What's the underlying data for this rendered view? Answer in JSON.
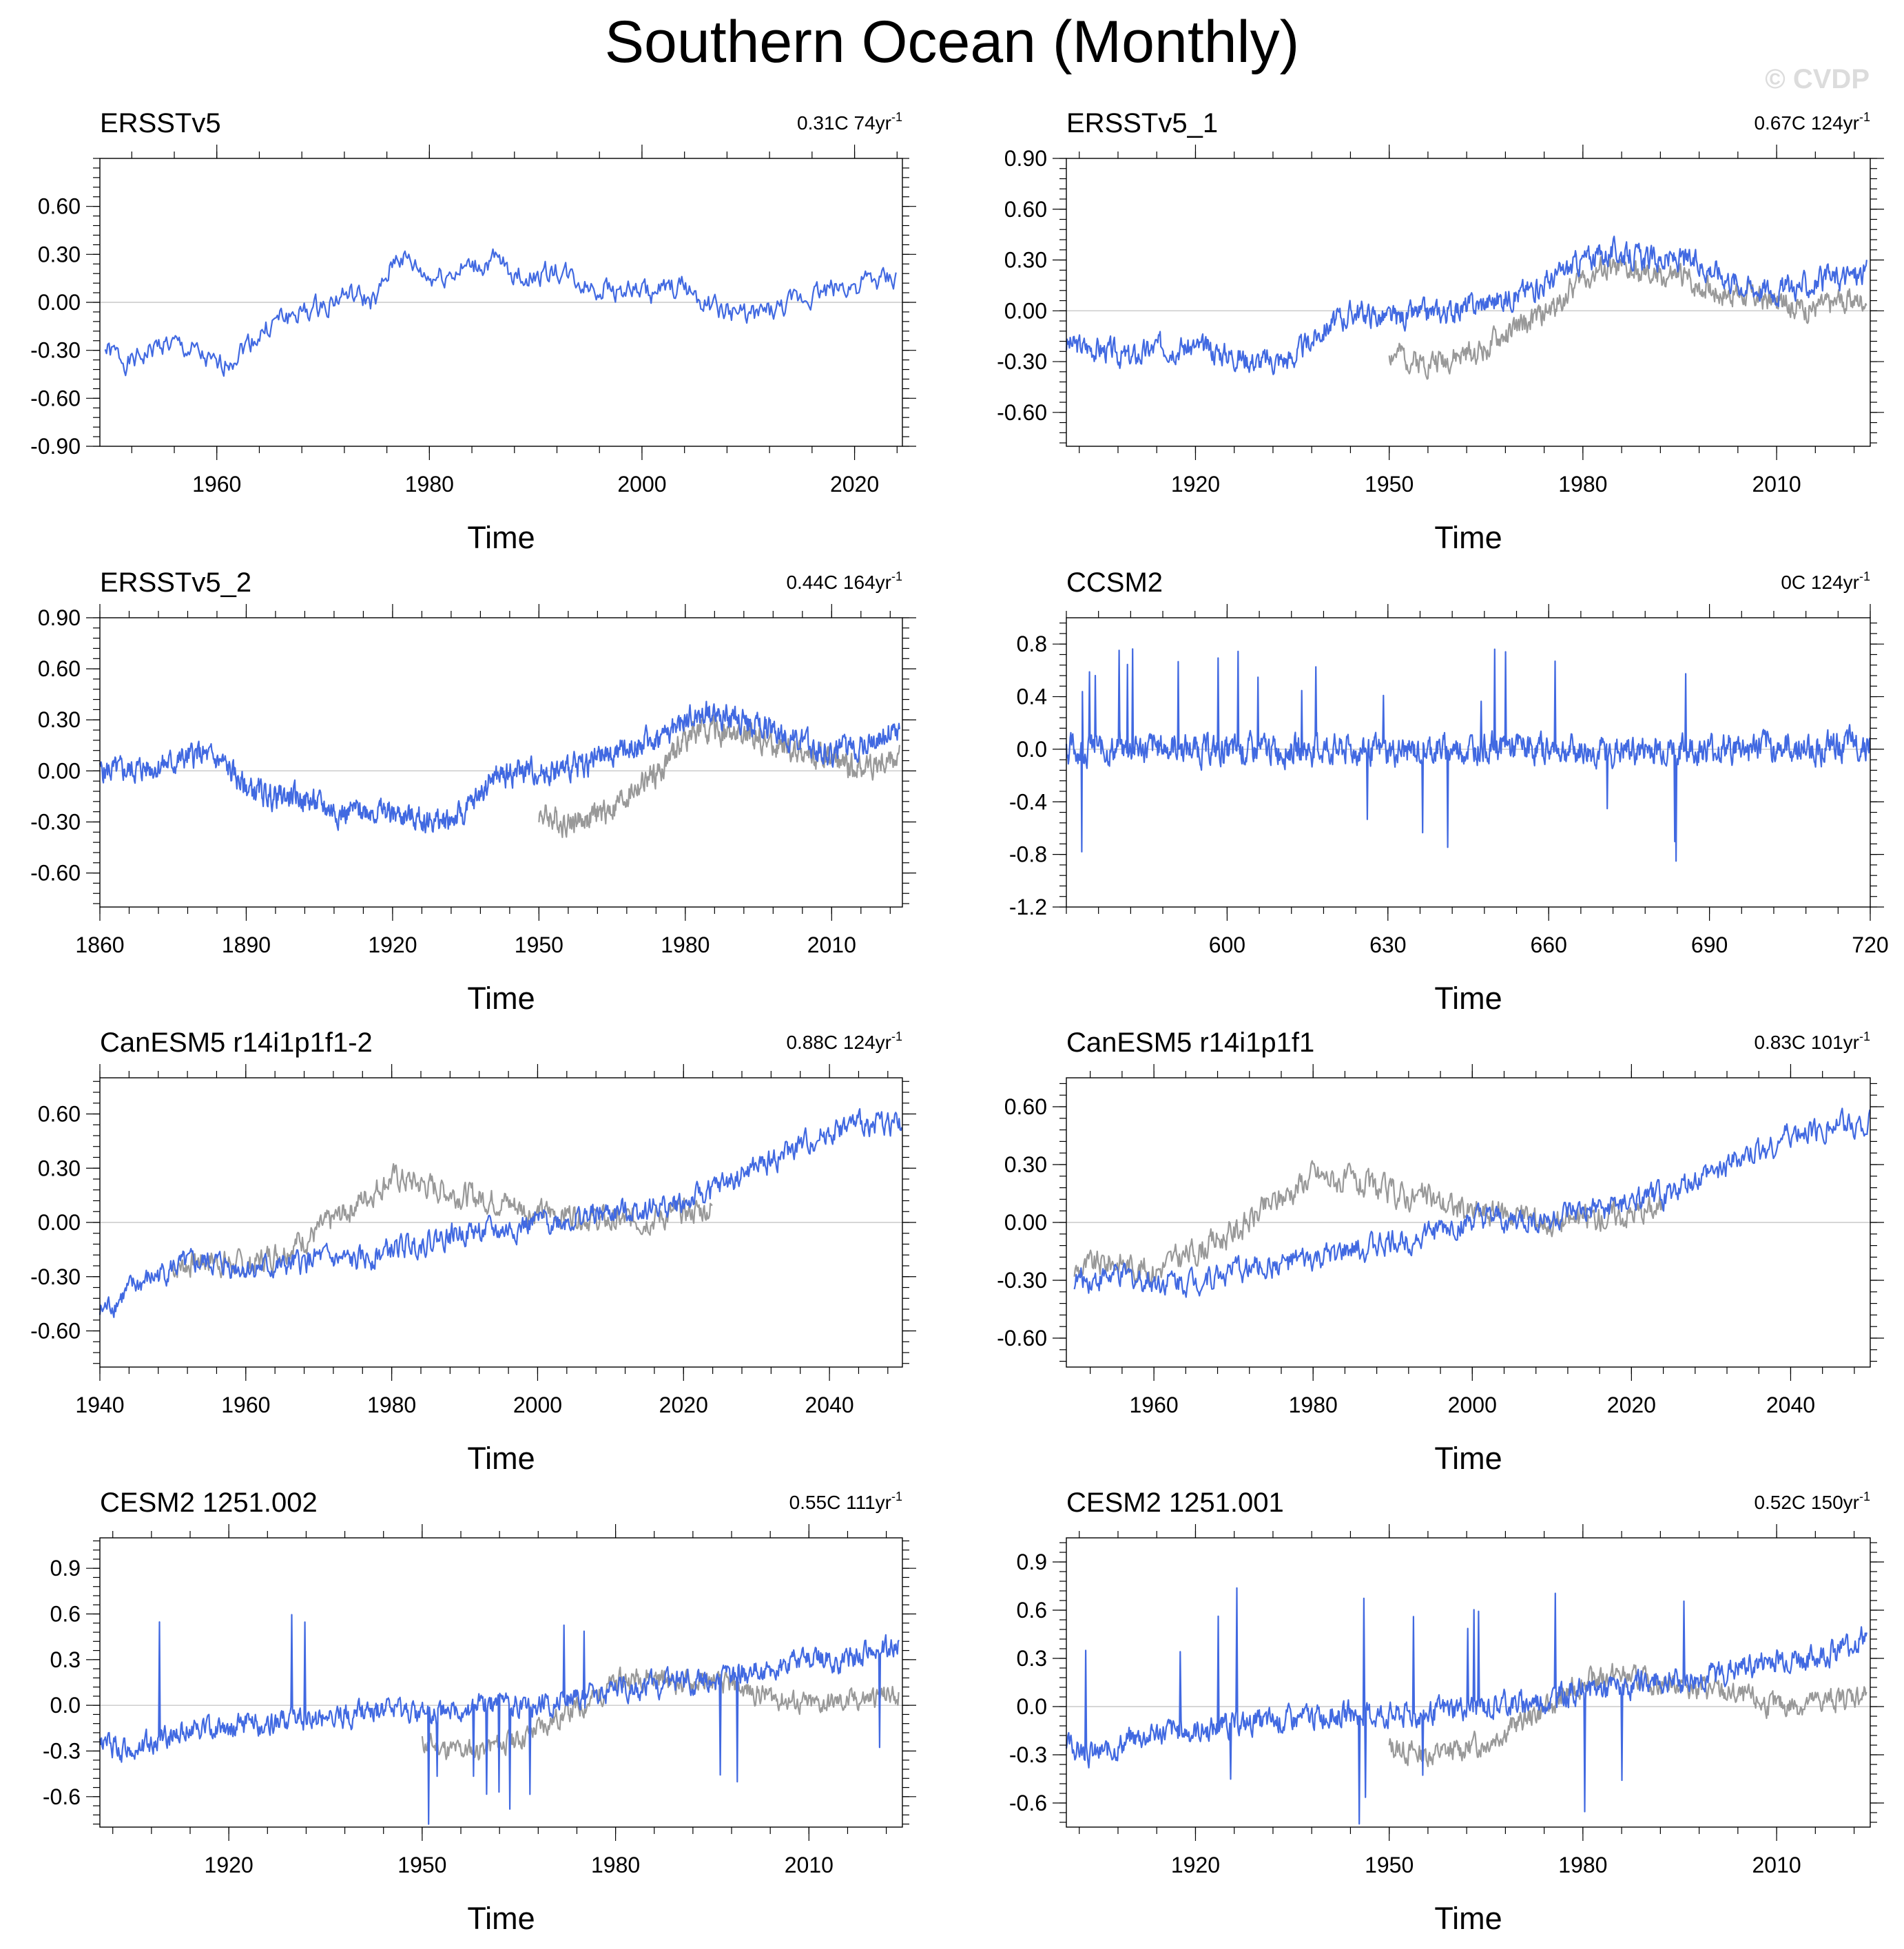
{
  "title": "Southern Ocean (Monthly)",
  "watermark": "© CVDP",
  "colors": {
    "primary": "#4169e1",
    "comparison": "#999999",
    "zero_line": "#c8c8c8"
  },
  "chart_data": [
    {
      "type": "line",
      "title": "ERSSTv5",
      "trend_text": "0.31C 74yr",
      "trend_sup": "-1",
      "xlabel": "Time",
      "xlim": [
        1949,
        2024.5
      ],
      "ylim": [
        -0.9,
        0.9
      ],
      "yticks": [
        -0.9,
        -0.6,
        -0.3,
        0.0,
        0.3,
        0.6
      ],
      "ytick_labels": [
        "-0.90",
        "-0.60",
        "-0.30",
        "0.00",
        "0.30",
        "0.60"
      ],
      "xticks": [
        1960,
        1980,
        2000,
        2020
      ],
      "xtick_labels": [
        "1960",
        "1980",
        "2000",
        "2020"
      ],
      "series": [
        {
          "name": "ERSSTv5",
          "color": "#4169e1",
          "x": [
            1949.5,
            1952,
            1955,
            1958,
            1960,
            1963,
            1966,
            1969,
            1972,
            1975,
            1977,
            1980,
            1983,
            1986,
            1989,
            1992,
            1995,
            1998,
            2001,
            2004,
            2007,
            2010,
            2013,
            2016,
            2019,
            2022,
            2024
          ],
          "y": [
            -0.3,
            -0.38,
            -0.25,
            -0.32,
            -0.42,
            -0.25,
            -0.1,
            -0.05,
            0.05,
            0.0,
            0.3,
            0.15,
            0.2,
            0.25,
            0.15,
            0.2,
            0.1,
            0.08,
            0.05,
            0.1,
            -0.05,
            -0.08,
            -0.05,
            0.05,
            0.1,
            0.12,
            0.15
          ],
          "amp": 0.13,
          "seed": 1
        }
      ]
    },
    {
      "type": "line",
      "title": "ERSSTv5_1",
      "trend_text": "0.67C 124yr",
      "trend_sup": "-1",
      "xlabel": "Time",
      "xlim": [
        1900,
        2024.5
      ],
      "ylim": [
        -0.8,
        0.9
      ],
      "yticks": [
        -0.6,
        -0.3,
        0.0,
        0.3,
        0.6,
        0.9
      ],
      "ytick_labels": [
        "-0.60",
        "-0.30",
        "0.00",
        "0.30",
        "0.60",
        "0.90"
      ],
      "xticks": [
        1920,
        1950,
        1980,
        2010
      ],
      "xtick_labels": [
        "1920",
        "1950",
        "1980",
        "2010"
      ],
      "series": [
        {
          "name": "comparison",
          "color": "#999999",
          "x": [
            1950,
            1955,
            1960,
            1965,
            1970,
            1975,
            1980,
            1985,
            1990,
            1995,
            2000,
            2005,
            2010,
            2015,
            2020,
            2024
          ],
          "y": [
            -0.25,
            -0.3,
            -0.28,
            -0.22,
            -0.1,
            0.0,
            0.2,
            0.25,
            0.2,
            0.2,
            0.12,
            0.1,
            0.05,
            0.02,
            0.05,
            0.08
          ],
          "amp": 0.13,
          "seed": 2
        },
        {
          "name": "ERSSTv5_1",
          "color": "#4169e1",
          "x": [
            1900,
            1905,
            1910,
            1915,
            1920,
            1925,
            1930,
            1935,
            1940,
            1945,
            1950,
            1955,
            1960,
            1965,
            1970,
            1975,
            1980,
            1985,
            1990,
            1995,
            2000,
            2005,
            2010,
            2015,
            2020,
            2024
          ],
          "y": [
            -0.2,
            -0.22,
            -0.28,
            -0.2,
            -0.22,
            -0.25,
            -0.3,
            -0.28,
            -0.1,
            0.0,
            -0.05,
            -0.02,
            0.0,
            0.05,
            0.1,
            0.18,
            0.3,
            0.35,
            0.3,
            0.3,
            0.25,
            0.15,
            0.12,
            0.15,
            0.2,
            0.22
          ],
          "amp": 0.13,
          "seed": 3
        }
      ]
    },
    {
      "type": "line",
      "title": "ERSSTv5_2",
      "trend_text": "0.44C 164yr",
      "trend_sup": "-1",
      "xlabel": "Time",
      "xlim": [
        1860,
        2024.5
      ],
      "ylim": [
        -0.8,
        0.9
      ],
      "yticks": [
        -0.6,
        -0.3,
        0.0,
        0.3,
        0.6,
        0.9
      ],
      "ytick_labels": [
        "-0.60",
        "-0.30",
        "0.00",
        "0.30",
        "0.60",
        "0.90"
      ],
      "xticks": [
        1860,
        1890,
        1920,
        1950,
        1980,
        2010
      ],
      "xtick_labels": [
        "1860",
        "1890",
        "1920",
        "1950",
        "1980",
        "2010"
      ],
      "series": [
        {
          "name": "comparison",
          "color": "#999999",
          "x": [
            1950,
            1955,
            1960,
            1965,
            1970,
            1975,
            1980,
            1985,
            1990,
            1995,
            2000,
            2005,
            2010,
            2015,
            2020,
            2024
          ],
          "y": [
            -0.25,
            -0.3,
            -0.28,
            -0.22,
            -0.1,
            0.0,
            0.2,
            0.25,
            0.2,
            0.2,
            0.12,
            0.1,
            0.05,
            0.02,
            0.05,
            0.08
          ],
          "amp": 0.13,
          "seed": 4
        },
        {
          "name": "ERSSTv5_2",
          "color": "#4169e1",
          "x": [
            1860,
            1865,
            1870,
            1875,
            1880,
            1885,
            1890,
            1895,
            1900,
            1905,
            1910,
            1915,
            1920,
            1925,
            1930,
            1935,
            1940,
            1945,
            1950,
            1955,
            1960,
            1965,
            1970,
            1975,
            1980,
            1985,
            1990,
            1995,
            2000,
            2005,
            2010,
            2015,
            2020,
            2024
          ],
          "y": [
            0.0,
            0.0,
            0.02,
            0.05,
            0.1,
            0.05,
            -0.1,
            -0.15,
            -0.15,
            -0.2,
            -0.25,
            -0.22,
            -0.25,
            -0.28,
            -0.3,
            -0.25,
            -0.05,
            0.0,
            0.0,
            0.0,
            0.05,
            0.1,
            0.15,
            0.2,
            0.3,
            0.35,
            0.3,
            0.28,
            0.22,
            0.15,
            0.1,
            0.15,
            0.2,
            0.25
          ],
          "amp": 0.13,
          "seed": 5
        }
      ]
    },
    {
      "type": "line",
      "title": "CCSM2",
      "trend_text": "0C 124yr",
      "trend_sup": "-1",
      "xlabel": "Time",
      "xlim": [
        570,
        720
      ],
      "ylim": [
        -1.2,
        1.0
      ],
      "yticks": [
        -1.2,
        -0.8,
        -0.4,
        0.0,
        0.4,
        0.8
      ],
      "ytick_labels": [
        "-1.2",
        "-0.8",
        "-0.4",
        "0.0",
        "0.4",
        "0.8"
      ],
      "xticks": [
        600,
        630,
        660,
        690,
        720
      ],
      "xtick_labels": [
        "600",
        "630",
        "660",
        "690",
        "720"
      ],
      "series": [
        {
          "name": "CCSM2",
          "color": "#4169e1",
          "x": [
            570,
            580,
            590,
            600,
            610,
            620,
            630,
            640,
            650,
            660,
            670,
            680,
            690,
            700,
            710,
            720
          ],
          "y": [
            0.0,
            0.0,
            0.02,
            -0.02,
            0.0,
            0.0,
            -0.02,
            0.0,
            0.02,
            0.0,
            -0.02,
            0.0,
            0.0,
            0.02,
            0.0,
            0.05
          ],
          "amp": 0.2,
          "seed": 6,
          "spiky": true
        }
      ]
    },
    {
      "type": "line",
      "title": "CanESM5 r14i1p1f1-2",
      "trend_text": "0.88C 124yr",
      "trend_sup": "-1",
      "xlabel": "Time",
      "xlim": [
        1940,
        2050
      ],
      "ylim": [
        -0.8,
        0.8
      ],
      "yticks": [
        -0.6,
        -0.3,
        0.0,
        0.3,
        0.6
      ],
      "ytick_labels": [
        "-0.60",
        "-0.30",
        "0.00",
        "0.30",
        "0.60"
      ],
      "xticks": [
        1940,
        1960,
        1980,
        2000,
        2020,
        2040
      ],
      "xtick_labels": [
        "1940",
        "1960",
        "1980",
        "2000",
        "2020",
        "2040"
      ],
      "series": [
        {
          "name": "comparison",
          "color": "#999999",
          "x": [
            1950,
            1955,
            1960,
            1965,
            1970,
            1975,
            1980,
            1985,
            1990,
            1995,
            2000,
            2005,
            2010,
            2015,
            2020,
            2024
          ],
          "y": [
            -0.25,
            -0.2,
            -0.25,
            -0.15,
            -0.05,
            0.1,
            0.25,
            0.2,
            0.15,
            0.12,
            0.05,
            0.05,
            0.0,
            0.02,
            0.05,
            0.08
          ],
          "amp": 0.13,
          "seed": 7
        },
        {
          "name": "CanESM5 r14i1p1f1-2",
          "color": "#4169e1",
          "x": [
            1940,
            1945,
            1950,
            1955,
            1960,
            1965,
            1970,
            1975,
            1980,
            1985,
            1990,
            1995,
            2000,
            2005,
            2010,
            2015,
            2020,
            2025,
            2030,
            2035,
            2040,
            2045,
            2050
          ],
          "y": [
            -0.5,
            -0.35,
            -0.25,
            -0.22,
            -0.25,
            -0.25,
            -0.2,
            -0.22,
            -0.15,
            -0.1,
            -0.05,
            -0.05,
            0.0,
            0.02,
            0.05,
            0.08,
            0.1,
            0.2,
            0.3,
            0.4,
            0.5,
            0.55,
            0.55
          ],
          "amp": 0.12,
          "seed": 8
        }
      ]
    },
    {
      "type": "line",
      "title": "CanESM5 r14i1p1f1",
      "trend_text": "0.83C 101yr",
      "trend_sup": "-1",
      "xlabel": "Time",
      "xlim": [
        1949,
        2050
      ],
      "ylim": [
        -0.75,
        0.75
      ],
      "yticks": [
        -0.6,
        -0.3,
        0.0,
        0.3,
        0.6
      ],
      "ytick_labels": [
        "-0.60",
        "-0.30",
        "0.00",
        "0.30",
        "0.60"
      ],
      "xticks": [
        1960,
        1980,
        2000,
        2020,
        2040
      ],
      "xtick_labels": [
        "1960",
        "1980",
        "2000",
        "2020",
        "2040"
      ],
      "series": [
        {
          "name": "comparison",
          "color": "#999999",
          "x": [
            1950,
            1955,
            1960,
            1965,
            1970,
            1975,
            1980,
            1985,
            1990,
            1995,
            2000,
            2005,
            2010,
            2015,
            2020,
            2024
          ],
          "y": [
            -0.25,
            -0.2,
            -0.25,
            -0.15,
            -0.05,
            0.1,
            0.25,
            0.2,
            0.15,
            0.12,
            0.05,
            0.05,
            0.0,
            0.02,
            0.05,
            0.08
          ],
          "amp": 0.13,
          "seed": 9
        },
        {
          "name": "CanESM5 r14i1p1f1",
          "color": "#4169e1",
          "x": [
            1950,
            1955,
            1960,
            1965,
            1970,
            1975,
            1980,
            1985,
            1990,
            1995,
            2000,
            2005,
            2010,
            2015,
            2020,
            2025,
            2030,
            2035,
            2040,
            2045,
            2050
          ],
          "y": [
            -0.3,
            -0.28,
            -0.3,
            -0.3,
            -0.25,
            -0.22,
            -0.2,
            -0.15,
            -0.1,
            -0.05,
            0.0,
            0.0,
            0.02,
            0.05,
            0.1,
            0.15,
            0.25,
            0.35,
            0.45,
            0.5,
            0.52
          ],
          "amp": 0.12,
          "seed": 10
        }
      ]
    },
    {
      "type": "line",
      "title": "CESM2 1251.002",
      "trend_text": "0.55C 111yr",
      "trend_sup": "-1",
      "xlabel": "Time",
      "xlim": [
        1900,
        2024.5
      ],
      "ylim": [
        -0.8,
        1.1
      ],
      "yticks": [
        -0.6,
        -0.3,
        0.0,
        0.3,
        0.6,
        0.9
      ],
      "ytick_labels": [
        "-0.6",
        "-0.3",
        "0.0",
        "0.3",
        "0.6",
        "0.9"
      ],
      "xticks": [
        1920,
        1950,
        1980,
        2010
      ],
      "xtick_labels": [
        "1920",
        "1950",
        "1980",
        "2010"
      ],
      "series": [
        {
          "name": "comparison",
          "color": "#999999",
          "x": [
            1950,
            1955,
            1960,
            1965,
            1970,
            1975,
            1980,
            1985,
            1990,
            1995,
            2000,
            2005,
            2010,
            2015,
            2020,
            2024
          ],
          "y": [
            -0.25,
            -0.3,
            -0.28,
            -0.22,
            -0.1,
            0.0,
            0.15,
            0.2,
            0.15,
            0.15,
            0.1,
            0.05,
            0.0,
            0.02,
            0.05,
            0.08
          ],
          "amp": 0.13,
          "seed": 11
        },
        {
          "name": "CESM2 1251.002",
          "color": "#4169e1",
          "x": [
            1900,
            1905,
            1910,
            1915,
            1920,
            1925,
            1930,
            1935,
            1940,
            1945,
            1950,
            1955,
            1960,
            1965,
            1970,
            1975,
            1980,
            1985,
            1990,
            1995,
            2000,
            2005,
            2010,
            2015,
            2020,
            2024
          ],
          "y": [
            -0.25,
            -0.3,
            -0.2,
            -0.15,
            -0.15,
            -0.12,
            -0.1,
            -0.08,
            -0.05,
            -0.05,
            -0.05,
            -0.05,
            0.0,
            0.0,
            0.02,
            0.05,
            0.1,
            0.12,
            0.15,
            0.15,
            0.2,
            0.25,
            0.3,
            0.3,
            0.35,
            0.4
          ],
          "amp": 0.14,
          "seed": 12,
          "spiky": true
        }
      ]
    },
    {
      "type": "line",
      "title": "CESM2 1251.001",
      "trend_text": "0.52C 150yr",
      "trend_sup": "-1",
      "xlabel": "Time",
      "xlim": [
        1900,
        2024.5
      ],
      "ylim": [
        -0.75,
        1.05
      ],
      "yticks": [
        -0.6,
        -0.3,
        0.0,
        0.3,
        0.6,
        0.9
      ],
      "ytick_labels": [
        "-0.6",
        "-0.3",
        "0.0",
        "0.3",
        "0.6",
        "0.9"
      ],
      "xticks": [
        1920,
        1950,
        1980,
        2010
      ],
      "xtick_labels": [
        "1920",
        "1950",
        "1980",
        "2010"
      ],
      "series": [
        {
          "name": "comparison",
          "color": "#999999",
          "x": [
            1950,
            1955,
            1960,
            1965,
            1970,
            1975,
            1980,
            1985,
            1990,
            1995,
            2000,
            2005,
            2010,
            2015,
            2020,
            2024
          ],
          "y": [
            -0.25,
            -0.3,
            -0.28,
            -0.22,
            -0.1,
            0.0,
            0.15,
            0.2,
            0.15,
            0.15,
            0.1,
            0.05,
            0.0,
            0.02,
            0.05,
            0.08
          ],
          "amp": 0.13,
          "seed": 13
        },
        {
          "name": "CESM2 1251.001",
          "color": "#4169e1",
          "x": [
            1900,
            1905,
            1910,
            1915,
            1920,
            1925,
            1930,
            1935,
            1940,
            1945,
            1950,
            1955,
            1960,
            1965,
            1970,
            1975,
            1980,
            1985,
            1990,
            1995,
            2000,
            2005,
            2010,
            2015,
            2020,
            2024
          ],
          "y": [
            -0.25,
            -0.3,
            -0.2,
            -0.15,
            -0.15,
            -0.12,
            -0.1,
            -0.08,
            -0.05,
            -0.05,
            -0.05,
            -0.05,
            0.0,
            0.0,
            0.02,
            0.05,
            0.1,
            0.12,
            0.15,
            0.15,
            0.2,
            0.25,
            0.3,
            0.3,
            0.35,
            0.45
          ],
          "amp": 0.14,
          "seed": 14,
          "spiky": true
        }
      ]
    }
  ]
}
